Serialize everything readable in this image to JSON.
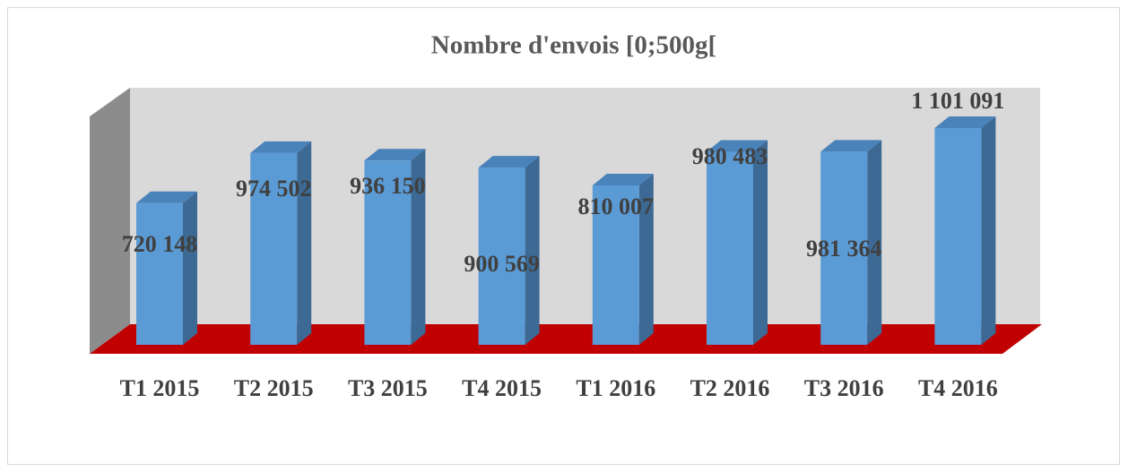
{
  "chart_data": {
    "type": "bar3d",
    "title": "Nombre d'envois [0;500g[",
    "categories": [
      "T1 2015",
      "T2 2015",
      "T3 2015",
      "T4 2015",
      "T1 2016",
      "T2 2016",
      "T3 2016",
      "T4 2016"
    ],
    "values": [
      720148,
      974502,
      936150,
      900569,
      810007,
      980483,
      981364,
      1101091
    ],
    "value_labels": [
      "720 148",
      "974 502",
      "936 150",
      "900 569",
      "810 007",
      "980 483",
      "981 364",
      "1 101 091"
    ],
    "color": "#5b9bd5"
  }
}
